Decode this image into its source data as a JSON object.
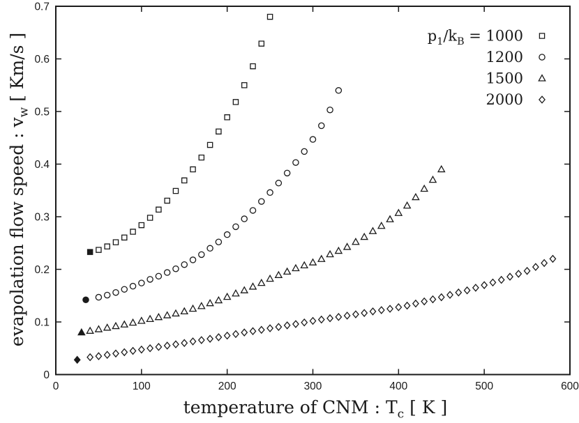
{
  "figure": {
    "background": "#ffffff",
    "foreground": "#1a1a1a"
  },
  "chart_data": {
    "type": "scatter",
    "title": "",
    "xlabel_parts": [
      {
        "t": "temperature of CNM : T"
      },
      {
        "t": "c",
        "sub": true
      },
      {
        "t": " [ K ]"
      }
    ],
    "ylabel_parts": [
      {
        "t": "evapolation flow speed : v"
      },
      {
        "t": "w",
        "sub": true
      },
      {
        "t": " [ Km/s ]"
      }
    ],
    "xlim": [
      0,
      600
    ],
    "ylim": [
      0,
      0.7
    ],
    "xticks": [
      0,
      100,
      200,
      300,
      400,
      500,
      600
    ],
    "xtick_labels": [
      "0",
      "100",
      "200",
      "300",
      "400",
      "500",
      "600"
    ],
    "yticks": [
      0,
      0.1,
      0.2,
      0.3,
      0.4,
      0.5,
      0.6,
      0.7
    ],
    "ytick_labels": [
      "0",
      "0.1",
      "0.2",
      "0.3",
      "0.4",
      "0.5",
      "0.6",
      "0.7"
    ],
    "grid": false,
    "legend": {
      "position": "top-right",
      "entries": [
        {
          "marker": "square",
          "label_parts": [
            {
              "t": "p"
            },
            {
              "t": "1",
              "sub": true
            },
            {
              "t": "/k"
            },
            {
              "t": "B",
              "sub": true
            },
            {
              "t": " = 1000"
            }
          ]
        },
        {
          "marker": "circle",
          "label_parts": [
            {
              "t": "1200"
            }
          ]
        },
        {
          "marker": "triangle",
          "label_parts": [
            {
              "t": "1500"
            }
          ]
        },
        {
          "marker": "diamond",
          "label_parts": [
            {
              "t": "2000"
            }
          ]
        }
      ]
    },
    "series": [
      {
        "name": "p1/kB = 1000",
        "marker": "square",
        "start_point": [
          40,
          0.233
        ],
        "points": [
          [
            50,
            0.237
          ],
          [
            60,
            0.2435
          ],
          [
            70,
            0.2515
          ],
          [
            80,
            0.2605
          ],
          [
            90,
            0.2715
          ],
          [
            100,
            0.284
          ],
          [
            110,
            0.298
          ],
          [
            120,
            0.3135
          ],
          [
            130,
            0.3305
          ],
          [
            140,
            0.349
          ],
          [
            150,
            0.369
          ],
          [
            160,
            0.39
          ],
          [
            170,
            0.4125
          ],
          [
            180,
            0.4365
          ],
          [
            190,
            0.462
          ],
          [
            200,
            0.489
          ],
          [
            210,
            0.518
          ],
          [
            220,
            0.55
          ],
          [
            230,
            0.586
          ],
          [
            240,
            0.629
          ],
          [
            250,
            0.68
          ]
        ]
      },
      {
        "name": "p1/kB = 1200",
        "marker": "circle",
        "start_point": [
          35,
          0.142
        ],
        "points": [
          [
            50,
            0.147
          ],
          [
            60,
            0.151
          ],
          [
            70,
            0.156
          ],
          [
            80,
            0.162
          ],
          [
            90,
            0.168
          ],
          [
            100,
            0.174
          ],
          [
            110,
            0.181
          ],
          [
            120,
            0.187
          ],
          [
            130,
            0.194
          ],
          [
            140,
            0.201
          ],
          [
            150,
            0.209
          ],
          [
            160,
            0.218
          ],
          [
            170,
            0.228
          ],
          [
            180,
            0.24
          ],
          [
            190,
            0.252
          ],
          [
            200,
            0.266
          ],
          [
            210,
            0.281
          ],
          [
            220,
            0.296
          ],
          [
            230,
            0.312
          ],
          [
            240,
            0.329
          ],
          [
            250,
            0.346
          ],
          [
            260,
            0.364
          ],
          [
            270,
            0.383
          ],
          [
            280,
            0.403
          ],
          [
            290,
            0.424
          ],
          [
            300,
            0.447
          ],
          [
            310,
            0.473
          ],
          [
            320,
            0.503
          ],
          [
            330,
            0.54
          ]
        ]
      },
      {
        "name": "p1/kB = 1500",
        "marker": "triangle",
        "start_point": [
          30,
          0.08
        ],
        "points": [
          [
            40,
            0.083
          ],
          [
            50,
            0.086
          ],
          [
            60,
            0.089
          ],
          [
            70,
            0.092
          ],
          [
            80,
            0.095
          ],
          [
            90,
            0.0985
          ],
          [
            100,
            0.102
          ],
          [
            110,
            0.1055
          ],
          [
            120,
            0.109
          ],
          [
            130,
            0.1125
          ],
          [
            140,
            0.116
          ],
          [
            150,
            0.12
          ],
          [
            160,
            0.125
          ],
          [
            170,
            0.13
          ],
          [
            180,
            0.1355
          ],
          [
            190,
            0.141
          ],
          [
            200,
            0.1475
          ],
          [
            210,
            0.154
          ],
          [
            220,
            0.16
          ],
          [
            230,
            0.167
          ],
          [
            240,
            0.174
          ],
          [
            250,
            0.182
          ],
          [
            260,
            0.189
          ],
          [
            270,
            0.1955
          ],
          [
            280,
            0.202
          ],
          [
            290,
            0.2075
          ],
          [
            300,
            0.213
          ],
          [
            310,
            0.2195
          ],
          [
            320,
            0.2285
          ],
          [
            330,
            0.235
          ],
          [
            340,
            0.2425
          ],
          [
            350,
            0.252
          ],
          [
            360,
            0.2615
          ],
          [
            370,
            0.2725
          ],
          [
            380,
            0.2825
          ],
          [
            390,
            0.295
          ],
          [
            400,
            0.307
          ],
          [
            410,
            0.321
          ],
          [
            420,
            0.337
          ],
          [
            430,
            0.353
          ],
          [
            440,
            0.37
          ],
          [
            450,
            0.39
          ]
        ]
      },
      {
        "name": "p1/kB = 2000",
        "marker": "diamond",
        "start_point": [
          25,
          0.028
        ],
        "points": [
          [
            40,
            0.033
          ],
          [
            50,
            0.035
          ],
          [
            60,
            0.0375
          ],
          [
            70,
            0.04
          ],
          [
            80,
            0.0425
          ],
          [
            90,
            0.045
          ],
          [
            100,
            0.0475
          ],
          [
            110,
            0.05
          ],
          [
            120,
            0.0525
          ],
          [
            130,
            0.055
          ],
          [
            140,
            0.0575
          ],
          [
            150,
            0.06
          ],
          [
            160,
            0.063
          ],
          [
            170,
            0.0655
          ],
          [
            180,
            0.068
          ],
          [
            190,
            0.071
          ],
          [
            200,
            0.074
          ],
          [
            210,
            0.077
          ],
          [
            220,
            0.08
          ],
          [
            230,
            0.0825
          ],
          [
            240,
            0.085
          ],
          [
            250,
            0.088
          ],
          [
            260,
            0.0905
          ],
          [
            270,
            0.0935
          ],
          [
            280,
            0.096
          ],
          [
            290,
            0.099
          ],
          [
            300,
            0.102
          ],
          [
            310,
            0.1045
          ],
          [
            320,
            0.107
          ],
          [
            330,
            0.1095
          ],
          [
            340,
            0.112
          ],
          [
            350,
            0.1145
          ],
          [
            360,
            0.117
          ],
          [
            370,
            0.12
          ],
          [
            380,
            0.1225
          ],
          [
            390,
            0.125
          ],
          [
            400,
            0.128
          ],
          [
            410,
            0.131
          ],
          [
            420,
            0.135
          ],
          [
            430,
            0.139
          ],
          [
            440,
            0.143
          ],
          [
            450,
            0.147
          ],
          [
            460,
            0.1515
          ],
          [
            470,
            0.156
          ],
          [
            480,
            0.16
          ],
          [
            490,
            0.165
          ],
          [
            500,
            0.17
          ],
          [
            510,
            0.175
          ],
          [
            520,
            0.18
          ],
          [
            530,
            0.186
          ],
          [
            540,
            0.1915
          ],
          [
            550,
            0.197
          ],
          [
            560,
            0.2045
          ],
          [
            570,
            0.212
          ],
          [
            580,
            0.22
          ]
        ]
      }
    ]
  }
}
